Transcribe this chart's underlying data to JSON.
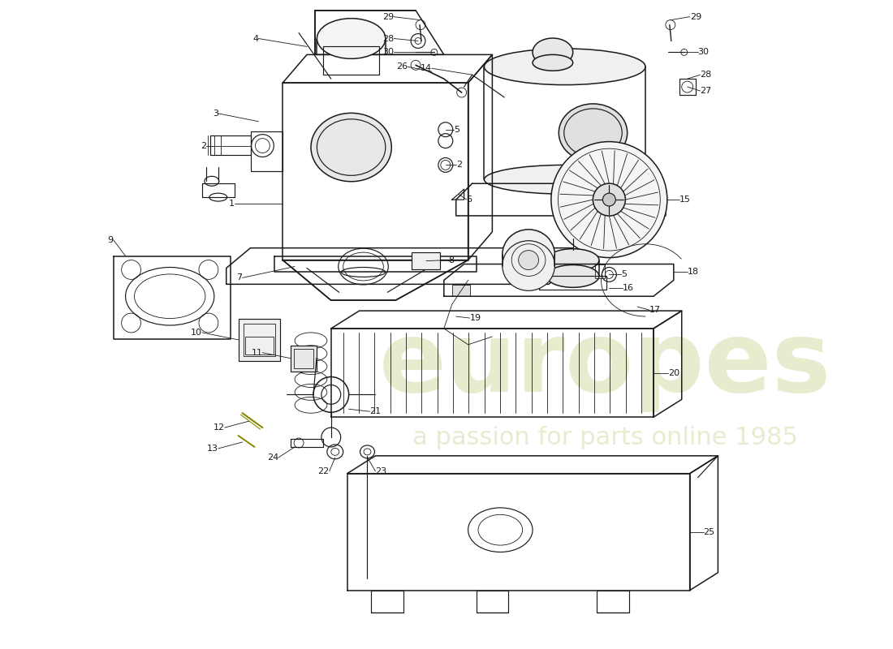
{
  "fig_width": 11.0,
  "fig_height": 8.0,
  "bg_color": "#ffffff",
  "line_color": "#1a1a1a",
  "watermark1": "europes",
  "watermark2": "a passion for parts online 1985",
  "wm_color": "#c8d896",
  "wm_alpha": 0.45,
  "label_fs": 8,
  "lw_main": 1.1,
  "lw_thin": 0.6,
  "lw_med": 0.85
}
